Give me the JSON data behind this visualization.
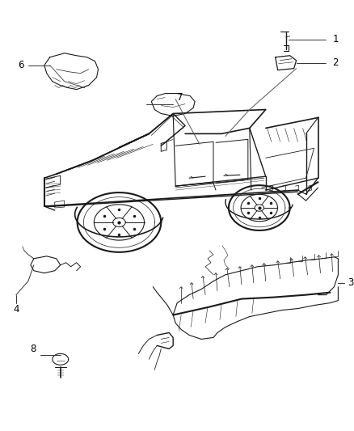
{
  "background_color": "#ffffff",
  "figure_size": [
    4.38,
    5.33
  ],
  "dpi": 100,
  "line_color": "#1a1a1a",
  "text_color": "#000000",
  "callout_fontsize": 8.5,
  "truck": {
    "scale": 1.0
  }
}
